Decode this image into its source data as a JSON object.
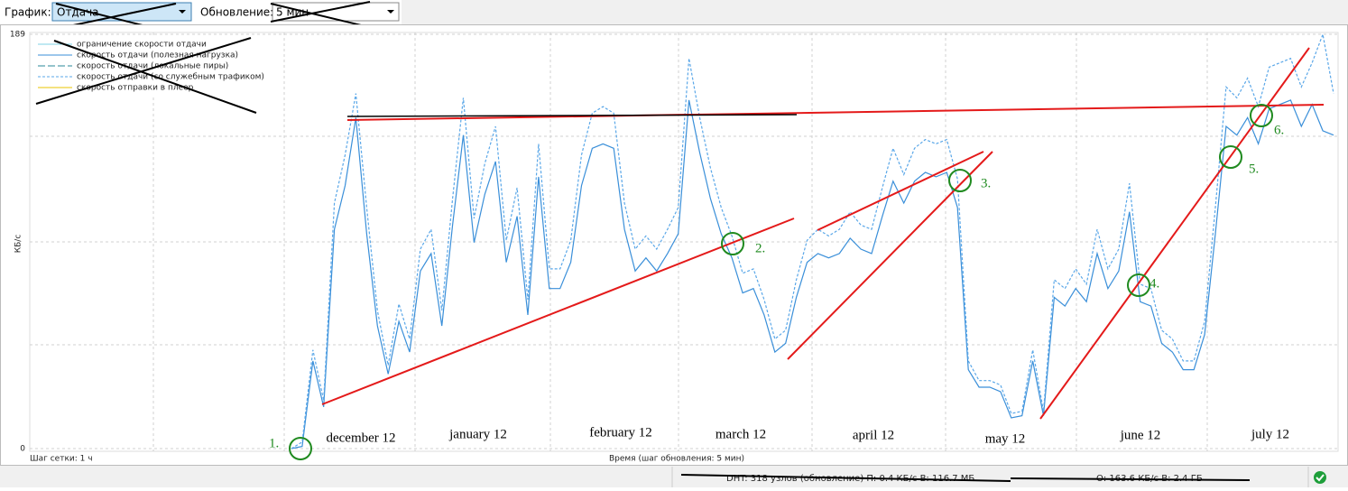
{
  "toolbar": {
    "graph_label": "График:",
    "graph_value": "Отдача",
    "update_label": "Обновление:",
    "update_value": "5 мин"
  },
  "chart_data": {
    "type": "line",
    "y_label": "КБ/с",
    "ylim": [
      0,
      189
    ],
    "yticks": [
      0,
      189
    ],
    "series": [
      {
        "name": "ограничение скорости отдачи",
        "color": "#7fd3e6"
      },
      {
        "name": "скорость отдачи (полезная нагрузка)",
        "color": "#3a8fd9",
        "style": "solid",
        "values": [
          0,
          1,
          40,
          19,
          100,
          120,
          151,
          98,
          56,
          34,
          58,
          44,
          81,
          89,
          56,
          102,
          143,
          94,
          116,
          131,
          85,
          106,
          61,
          124,
          73,
          73,
          85,
          120,
          137,
          139,
          137,
          100,
          81,
          87,
          81,
          89,
          98,
          159,
          135,
          114,
          98,
          87,
          71,
          73,
          61,
          44,
          48,
          69,
          85,
          89,
          87,
          89,
          96,
          91,
          89,
          106,
          122,
          112,
          122,
          126,
          124,
          126,
          110,
          36,
          28,
          28,
          26,
          14,
          15,
          40,
          15,
          69,
          65,
          73,
          67,
          89,
          73,
          81,
          108,
          67,
          65,
          48,
          44,
          36,
          36,
          52,
          98,
          147,
          143,
          151,
          139,
          155,
          157,
          159,
          147,
          157,
          145,
          143
        ]
      },
      {
        "name": "скорость отдачи (локальные пиры)",
        "color": "#2a8a9a"
      },
      {
        "name": "скорость отдачи (со служебным трафиком)",
        "color": "#5aa7e8",
        "style": "dashed",
        "values": [
          0,
          3,
          45,
          22,
          112,
          134,
          162,
          110,
          63,
          38,
          66,
          50,
          91,
          100,
          63,
          114,
          160,
          105,
          130,
          147,
          95,
          119,
          68,
          139,
          82,
          82,
          95,
          134,
          153,
          156,
          153,
          112,
          91,
          97,
          91,
          100,
          110,
          178,
          151,
          128,
          110,
          97,
          80,
          82,
          68,
          50,
          54,
          77,
          95,
          100,
          97,
          100,
          108,
          102,
          100,
          119,
          137,
          125,
          137,
          141,
          139,
          141,
          123,
          40,
          31,
          31,
          29,
          16,
          17,
          45,
          17,
          77,
          73,
          82,
          75,
          100,
          82,
          91,
          121,
          75,
          73,
          54,
          50,
          40,
          40,
          58,
          110,
          165,
          160,
          169,
          156,
          174,
          176,
          178,
          165,
          176,
          189,
          162
        ]
      },
      {
        "name": "скорость отправки в плеер",
        "color": "#e8c400"
      }
    ],
    "month_labels": [
      "december 12",
      "january 12",
      "february 12",
      "march 12",
      "april 12",
      "may 12",
      "june 12",
      "july 12"
    ],
    "annotations": [
      "1.",
      "2.",
      "3.",
      "4.",
      "5.",
      "6."
    ],
    "grid_step_label": "Шаг сетки: 1 ч",
    "x_label": "Время (шаг обновления: 5 мин)"
  },
  "status_bar": {
    "dht": "DHT: 318 узлов  (обновление)  П: 0.4 КБ/с В: 116.7 МБ",
    "upload": "О: 163.6 КБ/с В: 2.4 ГБ"
  }
}
